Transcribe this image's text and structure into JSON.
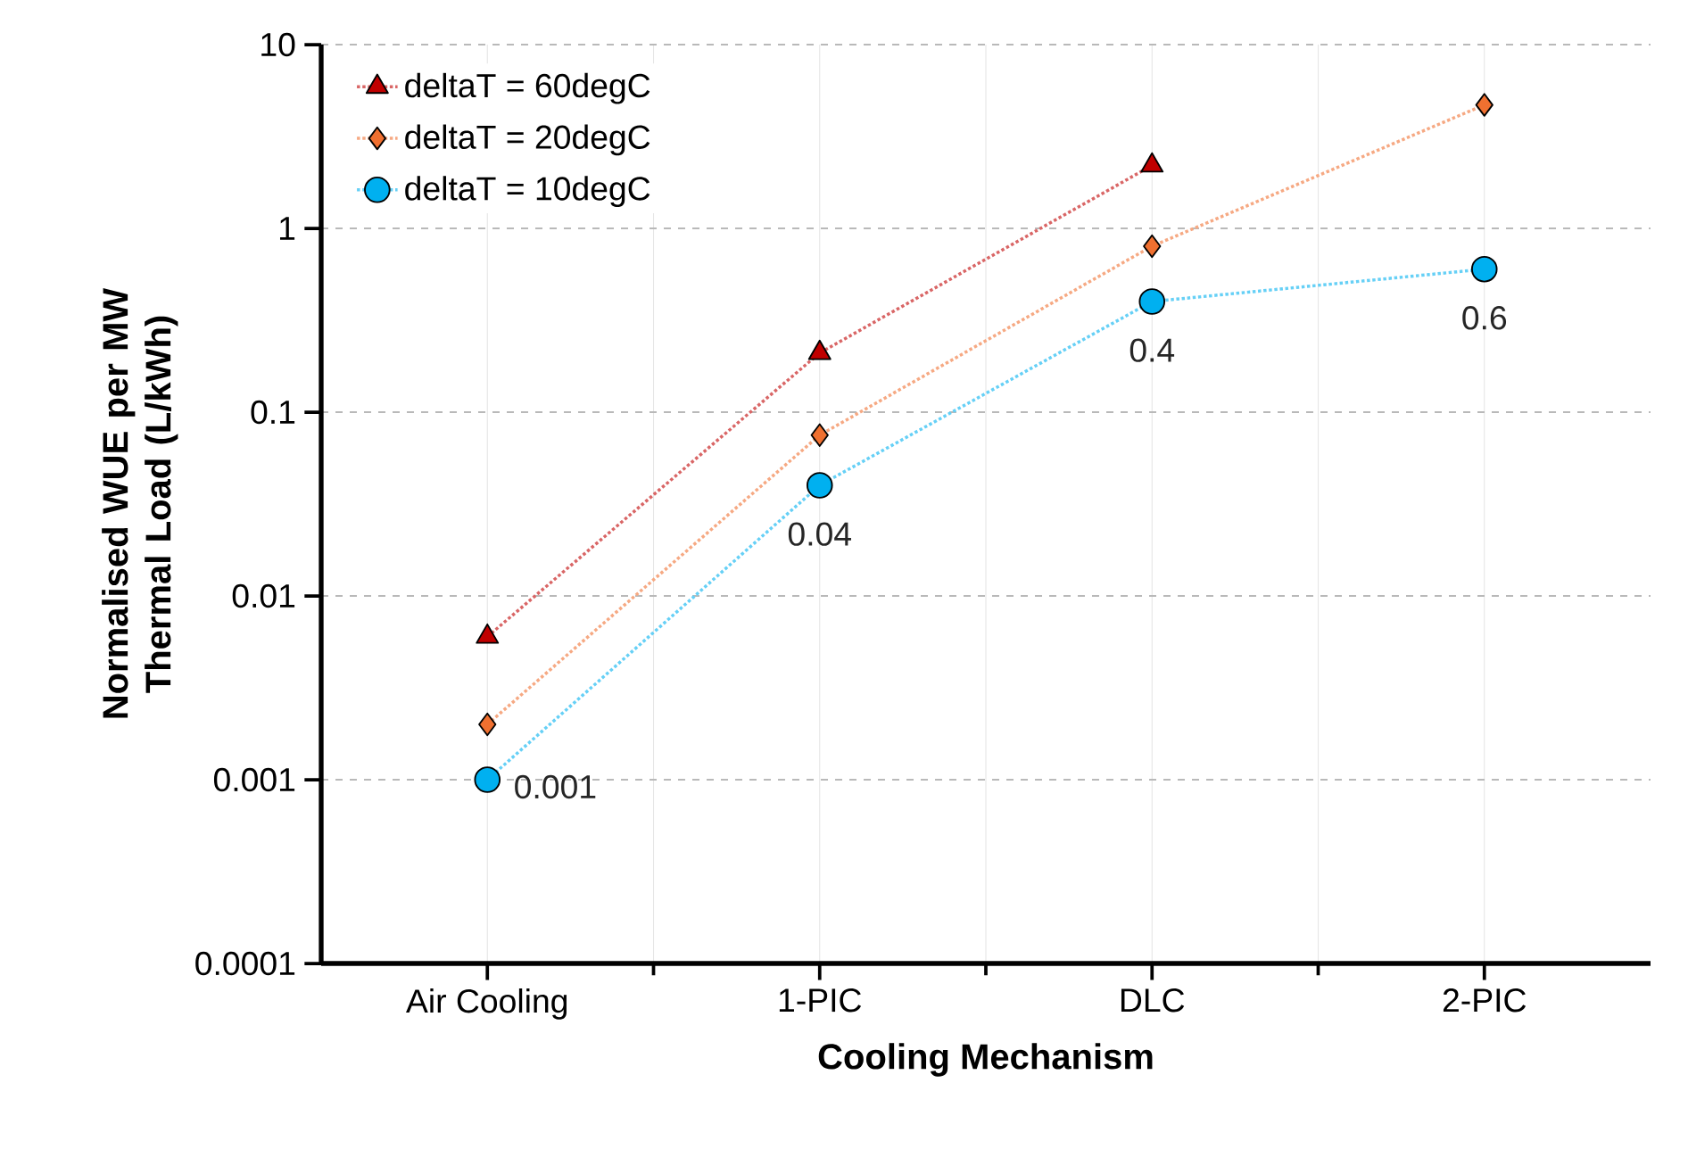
{
  "chart_data": {
    "type": "line",
    "xlabel": "Cooling Mechanism",
    "ylabel": "Normalised WUE per MW Thermal Load (L/kWh)",
    "categories": [
      "Air Cooling",
      "1-PIC",
      "DLC",
      "2-PIC"
    ],
    "series": [
      {
        "name": "deltaT = 60degC",
        "color": "#c00000",
        "marker": "triangle",
        "values": [
          0.006,
          0.21,
          2.2,
          null
        ]
      },
      {
        "name": "deltaT = 20degC",
        "color": "#f07030",
        "marker": "diamond",
        "values": [
          0.002,
          0.075,
          0.8,
          4.7
        ]
      },
      {
        "name": "deltaT = 10degC",
        "color": "#00b0f0",
        "marker": "circle",
        "values": [
          0.001,
          0.04,
          0.4,
          0.6
        ],
        "value_labels": [
          "0.001",
          "0.04",
          "0.4",
          "0.6"
        ]
      }
    ],
    "log": "y",
    "ylim": [
      0.0001,
      10
    ],
    "yticks": [
      0.0001,
      0.001,
      0.01,
      0.1,
      1,
      10
    ],
    "grid": true,
    "legend": "top left",
    "line_style": "dotted"
  }
}
